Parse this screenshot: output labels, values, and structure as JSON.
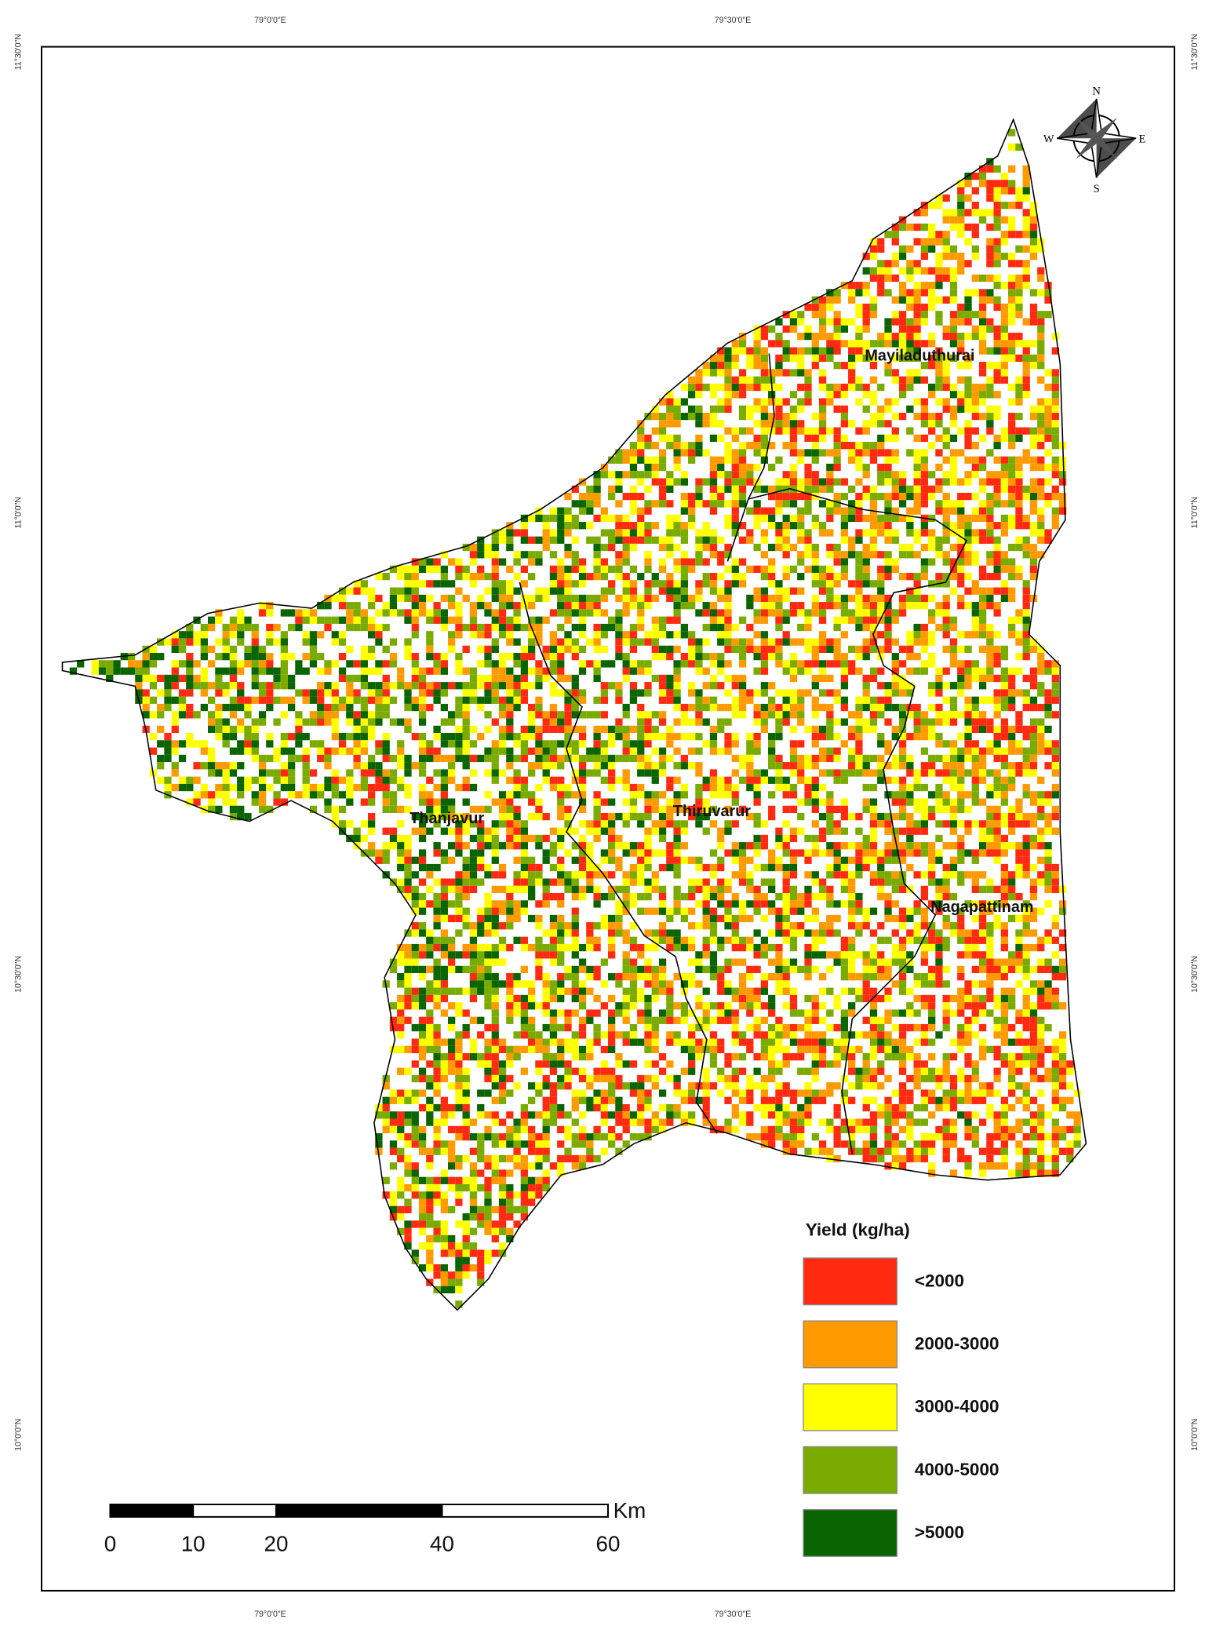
{
  "graticule": {
    "longitudes": [
      "79°0'0\"E",
      "79°30'0\"E"
    ],
    "latitudes": [
      "11°30'0\"N",
      "11°0'0\"N",
      "10°30'0\"N",
      "10°0'0\"N"
    ]
  },
  "compass": {
    "n": "N",
    "e": "E",
    "s": "S",
    "w": "W"
  },
  "districts": [
    "Mayiladuthurai",
    "Thanjavur",
    "Thiruvarur",
    "Nagapattinam"
  ],
  "legend": {
    "title": "Yield (kg/ha)",
    "items": [
      {
        "label": "<2000",
        "color": "#ff2a10"
      },
      {
        "label": "2000-3000",
        "color": "#ff9a00"
      },
      {
        "label": "3000-4000",
        "color": "#ffff00"
      },
      {
        "label": "4000-5000",
        "color": "#7aab00"
      },
      {
        "label": ">5000",
        "color": "#0a6400"
      }
    ]
  },
  "scale_bar": {
    "ticks": [
      0,
      10,
      20,
      40,
      60
    ],
    "unit": "Km"
  }
}
